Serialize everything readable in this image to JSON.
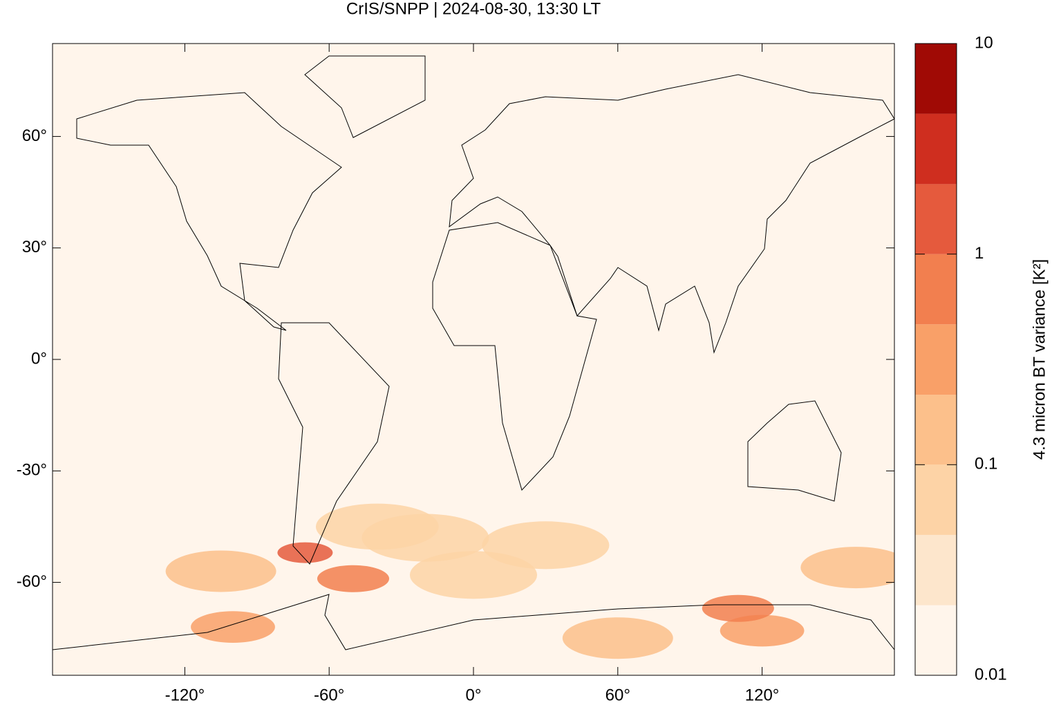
{
  "chart_data": {
    "type": "map",
    "title": "CrIS/SNPP | 2024-08-30, 13:30 LT",
    "xlim": [
      -175,
      175
    ],
    "ylim": [
      -85,
      85
    ],
    "xticks": [
      {
        "value": -120,
        "label": "-120°"
      },
      {
        "value": -60,
        "label": "-60°"
      },
      {
        "value": 0,
        "label": "0°"
      },
      {
        "value": 60,
        "label": "60°"
      },
      {
        "value": 120,
        "label": "120°"
      }
    ],
    "yticks": [
      {
        "value": -60,
        "label": "-60°"
      },
      {
        "value": -30,
        "label": "-30°"
      },
      {
        "value": 0,
        "label": "0°"
      },
      {
        "value": 30,
        "label": "30°"
      },
      {
        "value": 60,
        "label": "60°"
      }
    ],
    "colorbar": {
      "label": "4.3 micron BT variance [K²]",
      "log_scale": true,
      "lim": [
        0.01,
        10
      ],
      "ticks": [
        0.01,
        0.1,
        1,
        10
      ],
      "levels": [
        0.01,
        0.0215,
        0.0464,
        0.1,
        0.215,
        0.464,
        1,
        2.15,
        4.64,
        10
      ],
      "colors": [
        "#fff5eb",
        "#fde6cc",
        "#fdd3a6",
        "#fcc08b",
        "#f9a068",
        "#f27f4f",
        "#e55a3d",
        "#cf2e1f",
        "#a00a05"
      ]
    },
    "hotspots": {
      "lon": [
        -50,
        -70,
        110,
        -100,
        120,
        -40,
        30,
        159,
        -105,
        60,
        0,
        -20
      ],
      "lat": [
        -59,
        -52,
        -67,
        -72,
        -73,
        -45,
        -50,
        -56,
        -57,
        -75,
        -58,
        -48
      ],
      "values": [
        0.5,
        1.0,
        0.5,
        0.3,
        0.3,
        0.06,
        0.05,
        0.1,
        0.1,
        0.1,
        0.05,
        0.05
      ]
    }
  }
}
